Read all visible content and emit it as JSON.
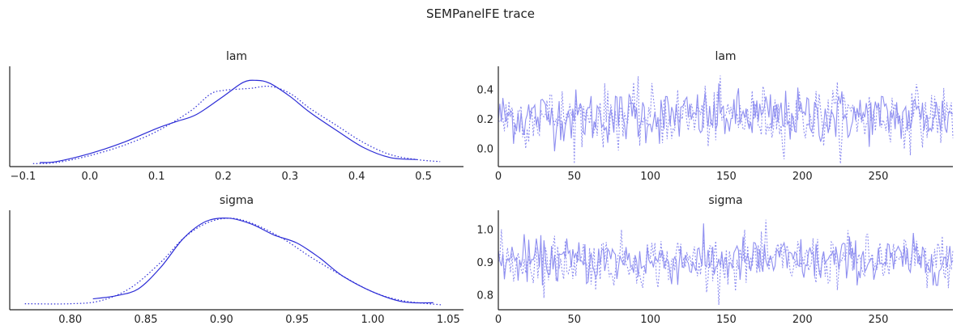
{
  "title": "SEMPanelFE trace",
  "colors": {
    "line": "#2b2bd6",
    "trace": "#8f8ff0",
    "axis": "#222222"
  },
  "chart_data": [
    {
      "id": "lam_density",
      "type": "line",
      "title": "lam",
      "xlabel": "",
      "ylabel": "",
      "xlim": [
        -0.12,
        0.56
      ],
      "ylim": [
        0,
        1.0
      ],
      "xticks": [
        -0.1,
        0.0,
        0.1,
        0.2,
        0.3,
        0.4,
        0.5
      ],
      "xtick_labels": [
        "−0.1",
        "0.0",
        "0.1",
        "0.2",
        "0.3",
        "0.4",
        "0.5"
      ],
      "yticks": [],
      "series": [
        {
          "style": "solid",
          "x": [
            -0.075,
            -0.05,
            0.0,
            0.05,
            0.1,
            0.13,
            0.16,
            0.2,
            0.23,
            0.25,
            0.27,
            0.3,
            0.33,
            0.37,
            0.41,
            0.45,
            0.49
          ],
          "y": [
            0.04,
            0.05,
            0.13,
            0.24,
            0.38,
            0.45,
            0.52,
            0.7,
            0.84,
            0.86,
            0.83,
            0.7,
            0.54,
            0.36,
            0.19,
            0.09,
            0.07
          ]
        },
        {
          "style": "dotted",
          "x": [
            -0.085,
            -0.05,
            0.0,
            0.05,
            0.1,
            0.15,
            0.18,
            0.2,
            0.24,
            0.27,
            0.3,
            0.33,
            0.37,
            0.41,
            0.45,
            0.49,
            0.525
          ],
          "y": [
            0.03,
            0.04,
            0.11,
            0.21,
            0.35,
            0.55,
            0.72,
            0.76,
            0.78,
            0.8,
            0.73,
            0.58,
            0.41,
            0.24,
            0.12,
            0.07,
            0.05
          ]
        }
      ]
    },
    {
      "id": "lam_trace",
      "type": "line",
      "title": "lam",
      "xlabel": "",
      "ylabel": "",
      "xlim": [
        0,
        299
      ],
      "ylim": [
        -0.12,
        0.56
      ],
      "xticks": [
        0,
        50,
        100,
        150,
        200,
        250
      ],
      "xtick_labels": [
        "0",
        "50",
        "100",
        "150",
        "200",
        "250"
      ],
      "yticks": [
        0.0,
        0.2,
        0.4
      ],
      "ytick_labels": [
        "0.0",
        "0.2",
        "0.4"
      ],
      "n_draws": 300,
      "series": [
        {
          "style": "solid",
          "mean": 0.22,
          "sd": 0.09,
          "min": -0.05,
          "max": 0.5
        },
        {
          "style": "dotted",
          "mean": 0.22,
          "sd": 0.1,
          "min": -0.1,
          "max": 0.54
        }
      ]
    },
    {
      "id": "sigma_density",
      "type": "line",
      "title": "sigma",
      "xlabel": "",
      "ylabel": "",
      "xlim": [
        0.76,
        1.06
      ],
      "ylim": [
        0,
        1.0
      ],
      "xticks": [
        0.8,
        0.85,
        0.9,
        0.95,
        1.0,
        1.05
      ],
      "xtick_labels": [
        "0.80",
        "0.85",
        "0.90",
        "0.95",
        "1.00",
        "1.05"
      ],
      "yticks": [],
      "series": [
        {
          "style": "solid",
          "x": [
            0.815,
            0.83,
            0.845,
            0.86,
            0.875,
            0.89,
            0.905,
            0.92,
            0.935,
            0.95,
            0.965,
            0.98,
            1.0,
            1.02,
            1.04
          ],
          "y": [
            0.11,
            0.14,
            0.21,
            0.43,
            0.72,
            0.89,
            0.92,
            0.86,
            0.75,
            0.67,
            0.52,
            0.34,
            0.18,
            0.08,
            0.07
          ]
        },
        {
          "style": "dotted",
          "x": [
            0.77,
            0.8,
            0.82,
            0.84,
            0.86,
            0.875,
            0.89,
            0.905,
            0.92,
            0.94,
            0.96,
            0.98,
            1.0,
            1.02,
            1.045
          ],
          "y": [
            0.06,
            0.06,
            0.09,
            0.22,
            0.48,
            0.72,
            0.87,
            0.92,
            0.87,
            0.72,
            0.52,
            0.34,
            0.18,
            0.09,
            0.05
          ]
        }
      ]
    },
    {
      "id": "sigma_trace",
      "type": "line",
      "title": "sigma",
      "xlabel": "",
      "ylabel": "",
      "xlim": [
        0,
        299
      ],
      "ylim": [
        0.755,
        1.06
      ],
      "xticks": [
        0,
        50,
        100,
        150,
        200,
        250
      ],
      "xtick_labels": [
        "0",
        "50",
        "100",
        "150",
        "200",
        "250"
      ],
      "yticks": [
        0.8,
        0.9,
        1.0
      ],
      "ytick_labels": [
        "0.8",
        "0.9",
        "1.0"
      ],
      "n_draws": 300,
      "series": [
        {
          "style": "solid",
          "mean": 0.905,
          "sd": 0.035,
          "min": 0.83,
          "max": 1.04
        },
        {
          "style": "dotted",
          "mean": 0.905,
          "sd": 0.04,
          "min": 0.77,
          "max": 1.05
        }
      ]
    }
  ]
}
